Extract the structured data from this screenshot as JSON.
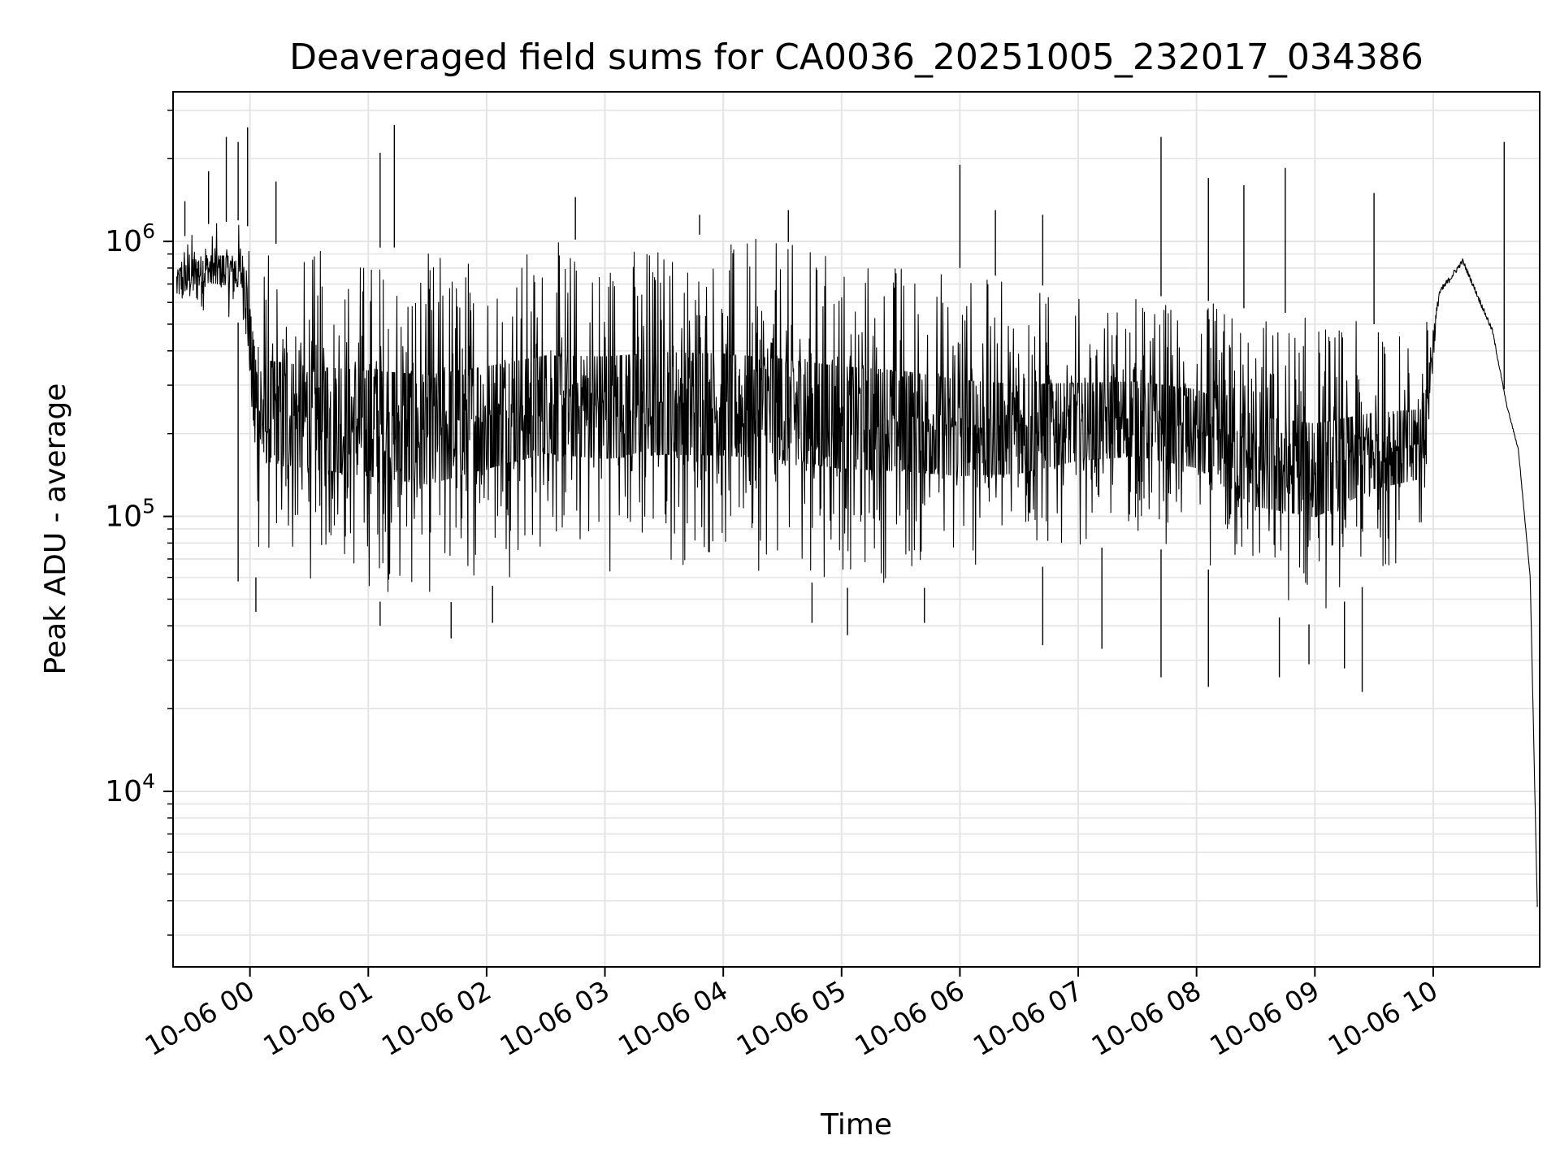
{
  "chart_data": {
    "type": "line",
    "title": "Deaveraged field sums for CA0036_20251005_232017_034386",
    "xlabel": "Time",
    "ylabel": "Peak ADU - average",
    "yscale": "log",
    "ylim": [
      2300,
      3500000
    ],
    "xlim_hours": [
      -0.65,
      10.9
    ],
    "grid": true,
    "line_color": "#000000",
    "x_ticks": [
      {
        "hour": 0,
        "label": "10-06 00"
      },
      {
        "hour": 1,
        "label": "10-06 01"
      },
      {
        "hour": 2,
        "label": "10-06 02"
      },
      {
        "hour": 3,
        "label": "10-06 03"
      },
      {
        "hour": 4,
        "label": "10-06 04"
      },
      {
        "hour": 5,
        "label": "10-06 05"
      },
      {
        "hour": 6,
        "label": "10-06 06"
      },
      {
        "hour": 7,
        "label": "10-06 07"
      },
      {
        "hour": 8,
        "label": "10-06 08"
      },
      {
        "hour": 9,
        "label": "10-06 09"
      },
      {
        "hour": 10,
        "label": "10-06 10"
      }
    ],
    "y_ticks": [
      {
        "value": 10000,
        "base": "10",
        "exp": "4"
      },
      {
        "value": 100000,
        "base": "10",
        "exp": "5"
      },
      {
        "value": 1000000,
        "base": "10",
        "exp": "6"
      }
    ],
    "envelope": {
      "hours": [
        -0.62,
        -0.4,
        -0.05,
        0.05,
        0.5,
        1.0,
        1.5,
        2.0,
        2.5,
        3.0,
        3.5,
        4.0,
        4.5,
        5.0,
        5.5,
        6.0,
        6.5,
        7.0,
        7.5,
        8.0,
        8.5,
        9.0,
        9.5,
        9.9,
        10.05,
        10.25,
        10.5,
        10.62,
        10.72,
        10.82,
        10.88
      ],
      "upper": [
        1000000,
        1150000,
        1200000,
        1000000,
        950000,
        950000,
        950000,
        950000,
        1000000,
        1030000,
        1070000,
        1050000,
        1000000,
        950000,
        900000,
        800000,
        720000,
        650000,
        640000,
        620000,
        560000,
        540000,
        500000,
        480000,
        700000,
        900000,
        500000,
        260000,
        180000,
        60000,
        3800
      ],
      "lower": [
        500000,
        550000,
        500000,
        60000,
        55000,
        50000,
        45000,
        55000,
        65000,
        60000,
        62000,
        62000,
        60000,
        55000,
        55000,
        55000,
        60000,
        75000,
        80000,
        70000,
        45000,
        40000,
        60000,
        70000,
        600000,
        800000,
        450000,
        250000,
        170000,
        60000,
        3800
      ]
    },
    "spikes_up": [
      {
        "hour": -0.55,
        "value": 1400000
      },
      {
        "hour": -0.35,
        "value": 1800000
      },
      {
        "hour": -0.2,
        "value": 2400000
      },
      {
        "hour": -0.1,
        "value": 2300000
      },
      {
        "hour": -0.02,
        "value": 2600000
      },
      {
        "hour": 0.22,
        "value": 1650000
      },
      {
        "hour": 1.1,
        "value": 2100000
      },
      {
        "hour": 1.22,
        "value": 2650000
      },
      {
        "hour": 2.75,
        "value": 1450000
      },
      {
        "hour": 3.8,
        "value": 1250000
      },
      {
        "hour": 4.55,
        "value": 1300000
      },
      {
        "hour": 6.0,
        "value": 1900000
      },
      {
        "hour": 6.3,
        "value": 1300000
      },
      {
        "hour": 6.7,
        "value": 1250000
      },
      {
        "hour": 7.7,
        "value": 2400000
      },
      {
        "hour": 8.1,
        "value": 1700000
      },
      {
        "hour": 8.4,
        "value": 1600000
      },
      {
        "hour": 8.75,
        "value": 1850000
      },
      {
        "hour": 9.5,
        "value": 1500000
      },
      {
        "hour": 10.6,
        "value": 2300000
      }
    ],
    "spikes_down": [
      {
        "hour": -0.1,
        "value": 58000
      },
      {
        "hour": 0.05,
        "value": 45000
      },
      {
        "hour": 1.1,
        "value": 40000
      },
      {
        "hour": 1.7,
        "value": 36000
      },
      {
        "hour": 2.05,
        "value": 41000
      },
      {
        "hour": 4.75,
        "value": 41000
      },
      {
        "hour": 5.05,
        "value": 37000
      },
      {
        "hour": 5.7,
        "value": 41000
      },
      {
        "hour": 6.7,
        "value": 34000
      },
      {
        "hour": 7.2,
        "value": 33000
      },
      {
        "hour": 7.7,
        "value": 26000
      },
      {
        "hour": 8.1,
        "value": 24000
      },
      {
        "hour": 8.7,
        "value": 26000
      },
      {
        "hour": 8.95,
        "value": 29000
      },
      {
        "hour": 9.25,
        "value": 28000
      },
      {
        "hour": 9.4,
        "value": 23000
      }
    ]
  }
}
